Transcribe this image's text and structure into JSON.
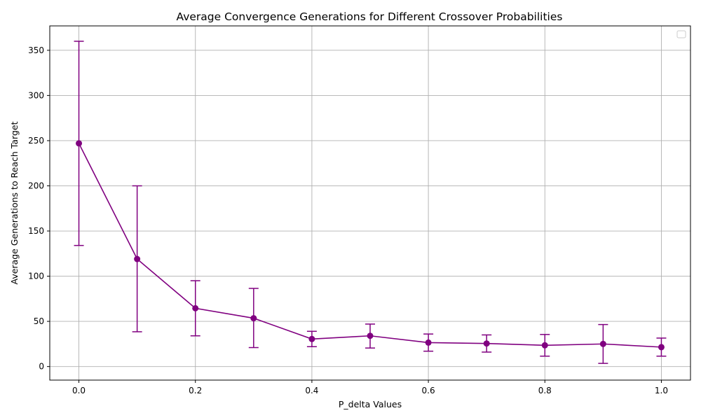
{
  "chart_data": {
    "type": "line",
    "title": "Average Convergence Generations for Different Crossover Probabilities",
    "xlabel": "P_delta Values",
    "ylabel": "Average Generations to Reach Target",
    "x": [
      0.0,
      0.1,
      0.2,
      0.3,
      0.4,
      0.5,
      0.6,
      0.7,
      0.8,
      0.9,
      1.0
    ],
    "x_tick_labels": [
      "0.0",
      "0.2",
      "0.4",
      "0.6",
      "0.8",
      "1.0"
    ],
    "x_ticks": [
      0.0,
      0.2,
      0.4,
      0.6,
      0.8,
      1.0
    ],
    "y_ticks": [
      0,
      50,
      100,
      150,
      200,
      250,
      300,
      350
    ],
    "y_tick_labels": [
      "0",
      "50",
      "100",
      "150",
      "200",
      "250",
      "300",
      "350"
    ],
    "xlim": [
      -0.05,
      1.05
    ],
    "ylim": [
      -15,
      377
    ],
    "grid": true,
    "legend": "top-right",
    "series": [
      {
        "color": "#800080",
        "marker": "circle",
        "values": [
          247,
          119,
          64.5,
          53.5,
          30.5,
          34,
          26.5,
          25.5,
          23.5,
          25,
          21.5
        ],
        "yerr_lower": [
          134,
          38.5,
          34,
          21,
          22,
          20.5,
          17,
          16,
          11.5,
          3.5,
          11.5
        ],
        "yerr_upper": [
          360,
          200,
          95,
          86.5,
          39,
          47,
          36,
          35,
          35.5,
          46.5,
          31.5
        ]
      }
    ]
  }
}
